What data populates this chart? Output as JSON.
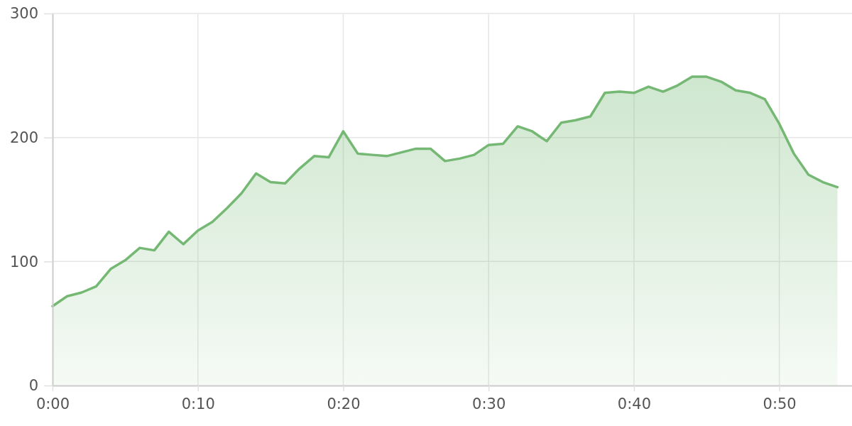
{
  "chart_data": {
    "type": "area",
    "x": [
      0,
      1,
      2,
      3,
      4,
      5,
      6,
      7,
      8,
      9,
      10,
      11,
      12,
      13,
      14,
      15,
      16,
      17,
      18,
      19,
      20,
      21,
      22,
      23,
      24,
      25,
      26,
      27,
      28,
      29,
      30,
      31,
      32,
      33,
      34,
      35,
      36,
      37,
      38,
      39,
      40,
      41,
      42,
      43,
      44,
      45,
      46,
      47,
      48,
      49,
      50,
      51,
      52,
      53,
      54
    ],
    "series": [
      {
        "color": "#74b874",
        "values": [
          64,
          72,
          75,
          80,
          94,
          101,
          111,
          109,
          124,
          114,
          125,
          132,
          143,
          155,
          171,
          164,
          163,
          175,
          185,
          184,
          205,
          187,
          186,
          185,
          188,
          191,
          191,
          181,
          183,
          186,
          194,
          195,
          209,
          205,
          197,
          212,
          214,
          217,
          236,
          237,
          236,
          241,
          237,
          242,
          249,
          249,
          245,
          238,
          236,
          231,
          211,
          187,
          170,
          164,
          160
        ]
      }
    ],
    "xlim": [
      0,
      55
    ],
    "xticks": [
      {
        "value": 0,
        "label": "0:00"
      },
      {
        "value": 10,
        "label": "0:10"
      },
      {
        "value": 20,
        "label": "0:20"
      },
      {
        "value": 30,
        "label": "0:30"
      },
      {
        "value": 40,
        "label": "0:40"
      },
      {
        "value": 50,
        "label": "0:50"
      }
    ],
    "ylim": [
      0,
      300
    ],
    "yticks": [
      0,
      100,
      200,
      300
    ],
    "grid": true
  }
}
